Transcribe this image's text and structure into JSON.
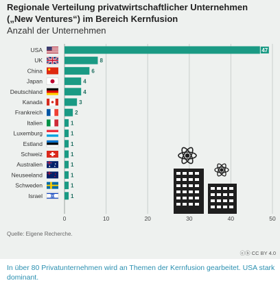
{
  "header": {
    "title": "Regionale Verteilung privatwirtschaftlicher Unternehmen („New Ventures“) im Bereich Kernfusion",
    "subtitle": "Anzahl der Unternehmen"
  },
  "footer": {
    "source": "Quelle: Eigene Recherche.",
    "license": "CC BY 4.0",
    "caption": "In über 80 Privatunternehmen wird an Themen der Kernfusion gearbeitet. USA stark dominant."
  },
  "colors": {
    "bar": "#1a9a84",
    "grid": "#c9cfcc",
    "background": "#eef1ef",
    "caption": "#2a8fb0"
  },
  "chart_data": {
    "type": "bar",
    "orientation": "horizontal",
    "categories": [
      "USA",
      "UK",
      "China",
      "Japan",
      "Deutschland",
      "Kanada",
      "Frankreich",
      "Italien",
      "Luxemburg",
      "Estland",
      "Schweiz",
      "Australien",
      "Neuseeland",
      "Schweden",
      "Israel"
    ],
    "values": [
      47,
      8,
      6,
      4,
      4,
      3,
      2,
      1,
      1,
      1,
      1,
      1,
      1,
      1,
      1
    ],
    "flags": [
      "us-flag-icon",
      "uk-flag-icon",
      "china-flag-icon",
      "japan-flag-icon",
      "germany-flag-icon",
      "canada-flag-icon",
      "france-flag-icon",
      "italy-flag-icon",
      "luxembourg-flag-icon",
      "estonia-flag-icon",
      "switzerland-flag-icon",
      "australia-flag-icon",
      "new-zealand-flag-icon",
      "sweden-flag-icon",
      "israel-flag-icon"
    ],
    "xlim": [
      0,
      50
    ],
    "xticks": [
      0,
      10,
      20,
      30,
      40,
      50
    ],
    "grid": true
  }
}
